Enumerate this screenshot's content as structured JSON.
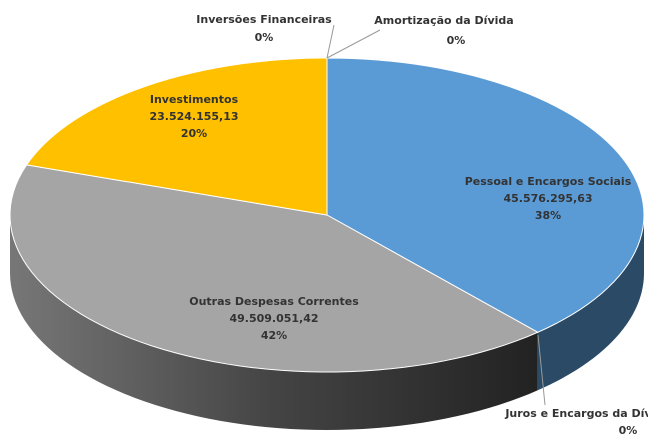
{
  "chart_data": {
    "type": "pie3d",
    "categories": [
      "Pessoal e Encargos Sociais",
      "Juros e Encargos da Dívida",
      "Outras Despesas Correntes",
      "Investimentos",
      "Inversões Financeiras",
      "Amortização da Dívida"
    ],
    "values": [
      45576295.63,
      0,
      49509051.42,
      23524155.13,
      0,
      0
    ],
    "value_labels": [
      "45.576.295,63",
      null,
      "49.509.051,42",
      "23.524.155,13",
      null,
      null
    ],
    "percent_labels": [
      "38%",
      "0%",
      "42%",
      "20%",
      "0%",
      "0%"
    ],
    "colors": [
      "#5b9bd5",
      "#ed7d31",
      "#a5a5a5",
      "#ffc000",
      "#4472c4",
      "#70ad47"
    ],
    "side_colors": [
      "#2b4a66",
      "#7a3f18",
      "#555555",
      "#806000",
      "#22396a",
      "#385a24"
    ]
  }
}
